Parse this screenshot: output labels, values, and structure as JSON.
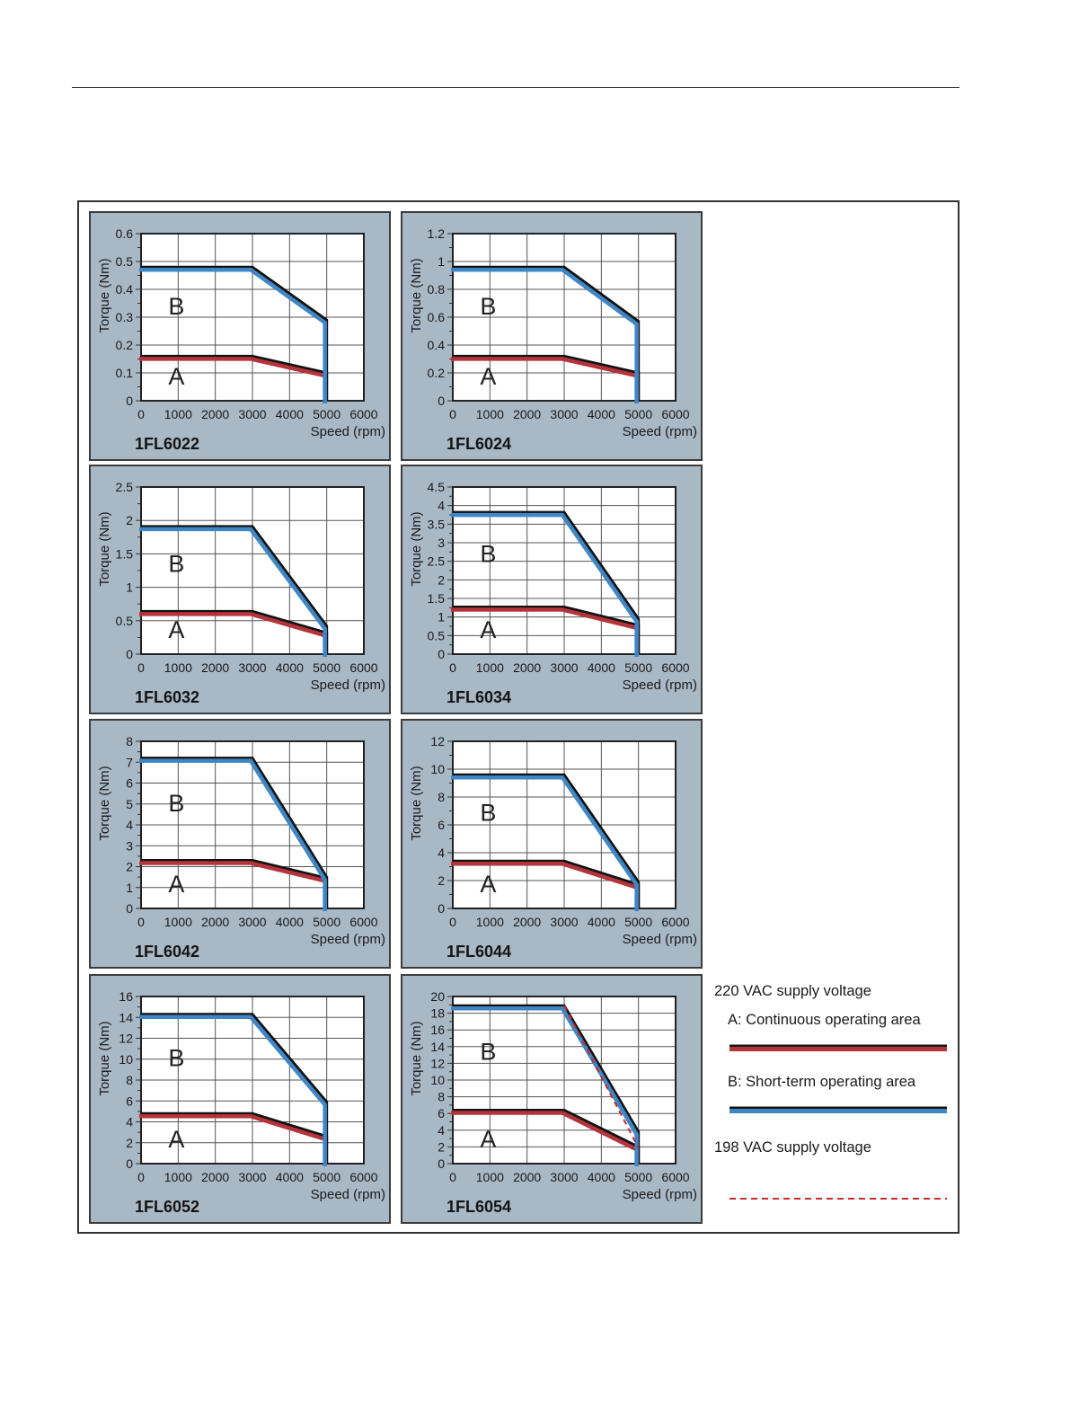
{
  "legend": {
    "v220": "220 VAC supply voltage",
    "continuous": "A: Continuous operating area",
    "shortterm": "B: Short-term operating area",
    "v198": "198 VAC supply voltage",
    "colors": {
      "continuous": "#b5343c",
      "shortterm": "#3f86c6",
      "v198": "#cc2929"
    }
  },
  "chart_data": [
    {
      "type": "line",
      "model": "1FL6022",
      "xlabel": "Speed (rpm)",
      "ylabel": "Torque (Nm)",
      "xlim": [
        0,
        6000
      ],
      "ylim": [
        0,
        0.6
      ],
      "x_ticks": [
        0,
        1000,
        2000,
        3000,
        4000,
        5000,
        6000
      ],
      "y_ticks": [
        0,
        0.1,
        0.2,
        0.3,
        0.4,
        0.5,
        0.6
      ],
      "y_tick_labels": [
        "0",
        "0.1",
        "0.2",
        "0.3",
        "0.4",
        "0.5",
        "0.6"
      ],
      "region_labels": [
        "A",
        "B"
      ],
      "series": [
        {
          "name": "A",
          "x": [
            0,
            3000,
            5000,
            5000
          ],
          "y": [
            0.16,
            0.16,
            0.1,
            0
          ]
        },
        {
          "name": "B",
          "x": [
            0,
            3000,
            5000,
            5000
          ],
          "y": [
            0.48,
            0.48,
            0.29,
            0
          ]
        }
      ]
    },
    {
      "type": "line",
      "model": "1FL6024",
      "xlabel": "Speed (rpm)",
      "ylabel": "Torque (Nm)",
      "xlim": [
        0,
        6000
      ],
      "ylim": [
        0,
        1.2
      ],
      "x_ticks": [
        0,
        1000,
        2000,
        3000,
        4000,
        5000,
        6000
      ],
      "y_ticks": [
        0,
        0.2,
        0.4,
        0.6,
        0.8,
        1,
        1.2
      ],
      "y_tick_labels": [
        "0",
        "0.2",
        "0.4",
        "0.6",
        "0.8",
        "1",
        "1.2"
      ],
      "region_labels": [
        "A",
        "B"
      ],
      "series": [
        {
          "name": "A",
          "x": [
            0,
            3000,
            5000,
            5000
          ],
          "y": [
            0.32,
            0.32,
            0.2,
            0
          ]
        },
        {
          "name": "B",
          "x": [
            0,
            3000,
            5000,
            5000
          ],
          "y": [
            0.96,
            0.96,
            0.57,
            0
          ]
        }
      ]
    },
    {
      "type": "line",
      "model": "1FL6032",
      "xlabel": "Speed (rpm)",
      "ylabel": "Torque (Nm)",
      "xlim": [
        0,
        6000
      ],
      "ylim": [
        0,
        2.5
      ],
      "x_ticks": [
        0,
        1000,
        2000,
        3000,
        4000,
        5000,
        6000
      ],
      "y_ticks": [
        0,
        0.5,
        1,
        1.5,
        2,
        2.5
      ],
      "y_tick_labels": [
        "0",
        "0.5",
        "1",
        "1.5",
        "2",
        "2.5"
      ],
      "region_labels": [
        "A",
        "B"
      ],
      "series": [
        {
          "name": "A",
          "x": [
            0,
            3000,
            5000,
            5000
          ],
          "y": [
            0.64,
            0.64,
            0.32,
            0
          ]
        },
        {
          "name": "B",
          "x": [
            0,
            3000,
            5000,
            5000
          ],
          "y": [
            1.91,
            1.91,
            0.42,
            0
          ]
        }
      ]
    },
    {
      "type": "line",
      "model": "1FL6034",
      "xlabel": "Speed (rpm)",
      "ylabel": "Torque (Nm)",
      "xlim": [
        0,
        6000
      ],
      "ylim": [
        0,
        4.5
      ],
      "x_ticks": [
        0,
        1000,
        2000,
        3000,
        4000,
        5000,
        6000
      ],
      "y_ticks": [
        0,
        0.5,
        1,
        1.5,
        2,
        2.5,
        3,
        3.5,
        4,
        4.5
      ],
      "y_tick_labels": [
        "0",
        "0.5",
        "1",
        "1.5",
        "2",
        "2.5",
        "3",
        "3.5",
        "4",
        "4.5"
      ],
      "region_labels": [
        "A",
        "B"
      ],
      "series": [
        {
          "name": "A",
          "x": [
            0,
            3000,
            5000,
            5000
          ],
          "y": [
            1.27,
            1.27,
            0.78,
            0
          ]
        },
        {
          "name": "B",
          "x": [
            0,
            3000,
            5000,
            5000
          ],
          "y": [
            3.82,
            3.82,
            0.95,
            0
          ]
        }
      ]
    },
    {
      "type": "line",
      "model": "1FL6042",
      "xlabel": "Speed (rpm)",
      "ylabel": "Torque (Nm)",
      "xlim": [
        0,
        6000
      ],
      "ylim": [
        0,
        8
      ],
      "x_ticks": [
        0,
        1000,
        2000,
        3000,
        4000,
        5000,
        6000
      ],
      "y_ticks": [
        0,
        1,
        2,
        3,
        4,
        5,
        6,
        7,
        8
      ],
      "y_tick_labels": [
        "0",
        "1",
        "2",
        "3",
        "4",
        "5",
        "6",
        "7",
        "8"
      ],
      "region_labels": [
        "A",
        "B"
      ],
      "series": [
        {
          "name": "A",
          "x": [
            0,
            3000,
            5000,
            5000
          ],
          "y": [
            2.3,
            2.3,
            1.45,
            0
          ]
        },
        {
          "name": "B",
          "x": [
            0,
            3000,
            5000,
            5000
          ],
          "y": [
            7.2,
            7.2,
            1.5,
            0
          ]
        }
      ]
    },
    {
      "type": "line",
      "model": "1FL6044",
      "xlabel": "Speed (rpm)",
      "ylabel": "Torque (Nm)",
      "xlim": [
        0,
        6000
      ],
      "ylim": [
        0,
        12
      ],
      "x_ticks": [
        0,
        1000,
        2000,
        3000,
        4000,
        5000,
        6000
      ],
      "y_ticks": [
        0,
        2,
        4,
        6,
        8,
        10,
        12
      ],
      "y_tick_labels": [
        "0",
        "2",
        "4",
        "6",
        "8",
        "10",
        "12"
      ],
      "region_labels": [
        "A",
        "B"
      ],
      "series": [
        {
          "name": "A",
          "x": [
            0,
            3000,
            5000,
            5000
          ],
          "y": [
            3.4,
            3.4,
            1.7,
            0
          ]
        },
        {
          "name": "B",
          "x": [
            0,
            3000,
            5000,
            5000
          ],
          "y": [
            9.6,
            9.6,
            1.9,
            0
          ]
        }
      ]
    },
    {
      "type": "line",
      "model": "1FL6052",
      "xlabel": "Speed (rpm)",
      "ylabel": "Torque (Nm)",
      "xlim": [
        0,
        6000
      ],
      "ylim": [
        0,
        16
      ],
      "x_ticks": [
        0,
        1000,
        2000,
        3000,
        4000,
        5000,
        6000
      ],
      "y_ticks": [
        0,
        2,
        4,
        6,
        8,
        10,
        12,
        14,
        16
      ],
      "y_tick_labels": [
        "0",
        "2",
        "4",
        "6",
        "8",
        "10",
        "12",
        "14",
        "16"
      ],
      "region_labels": [
        "A",
        "B"
      ],
      "series": [
        {
          "name": "A",
          "x": [
            0,
            3000,
            5000,
            5000
          ],
          "y": [
            4.8,
            4.8,
            2.6,
            0
          ]
        },
        {
          "name": "B",
          "x": [
            0,
            3000,
            5000,
            5000
          ],
          "y": [
            14.3,
            14.3,
            5.9,
            0
          ]
        }
      ]
    },
    {
      "type": "line",
      "model": "1FL6054",
      "xlabel": "Speed (rpm)",
      "ylabel": "Torque (Nm)",
      "xlim": [
        0,
        6000
      ],
      "ylim": [
        0,
        20
      ],
      "x_ticks": [
        0,
        1000,
        2000,
        3000,
        4000,
        5000,
        6000
      ],
      "y_ticks": [
        0,
        2,
        4,
        6,
        8,
        10,
        12,
        14,
        16,
        18,
        20
      ],
      "y_tick_labels": [
        "0",
        "2",
        "4",
        "6",
        "8",
        "10",
        "12",
        "14",
        "16",
        "18",
        "20"
      ],
      "region_labels": [
        "A",
        "B"
      ],
      "series": [
        {
          "name": "A",
          "x": [
            0,
            3000,
            5000,
            5000
          ],
          "y": [
            6.4,
            6.4,
            2,
            0
          ]
        },
        {
          "name": "B",
          "x": [
            0,
            3000,
            5000,
            5000
          ],
          "y": [
            18.9,
            18.9,
            3.8,
            0
          ]
        },
        {
          "name": "198 VAC",
          "x": [
            3000,
            5000
          ],
          "y": [
            18.9,
            1.9
          ],
          "dashed": true
        }
      ]
    }
  ]
}
